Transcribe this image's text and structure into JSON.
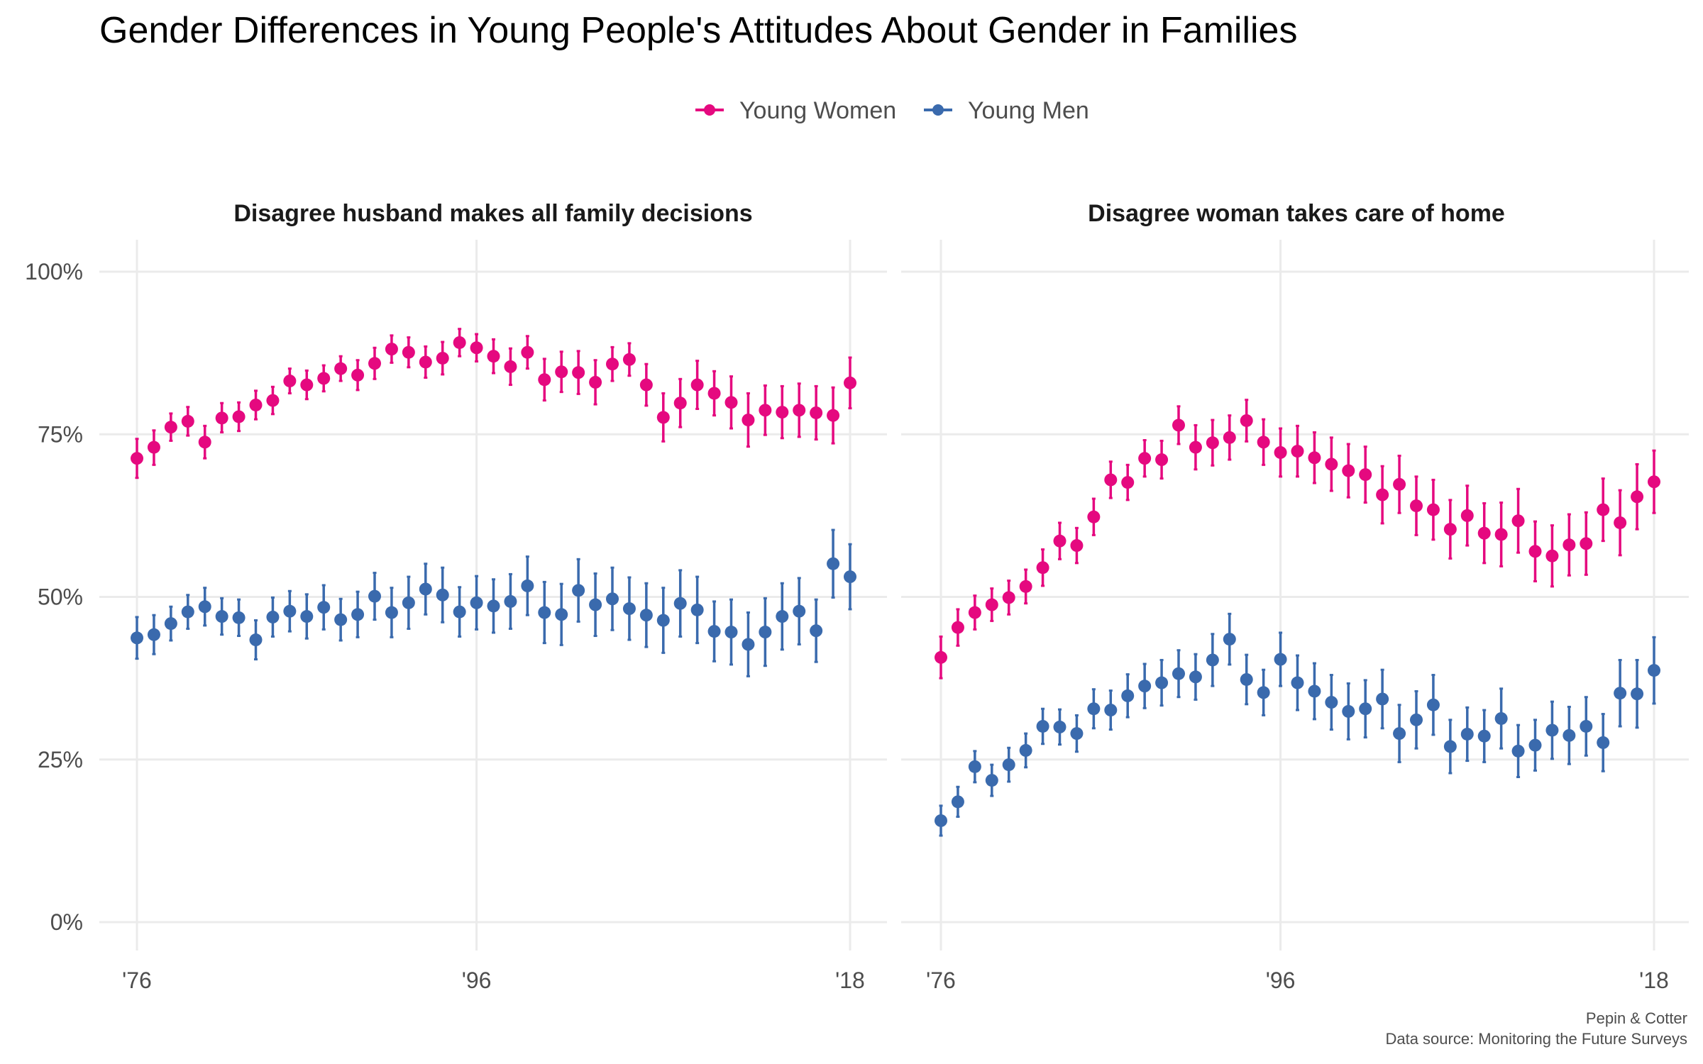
{
  "title": "Gender Differences in Young People's Attitudes About Gender in Families",
  "caption_line1": "Pepin & Cotter",
  "caption_line2": "Data source: Monitoring the Future Surveys",
  "colors": {
    "young_women": "#e5097f",
    "young_men": "#3a6aad"
  },
  "chart_data": [
    {
      "type": "scatter",
      "title": "Disagree husband makes all family decisions",
      "x_tick_labels": [
        "'76",
        "'96",
        "'18"
      ],
      "x_ticks": [
        1976,
        1996,
        2018
      ],
      "xlim": [
        1976,
        2018
      ],
      "y_tick_labels": [
        "0%",
        "25%",
        "50%",
        "75%",
        "100%"
      ],
      "y_ticks": [
        0,
        25,
        50,
        75,
        100
      ],
      "ylim": [
        0,
        100
      ],
      "legend": "top-center",
      "grid": true,
      "x": [
        1976,
        1977,
        1978,
        1979,
        1980,
        1981,
        1982,
        1983,
        1984,
        1985,
        1986,
        1987,
        1988,
        1989,
        1990,
        1991,
        1992,
        1993,
        1994,
        1995,
        1996,
        1997,
        1998,
        1999,
        2000,
        2001,
        2002,
        2003,
        2004,
        2005,
        2006,
        2007,
        2008,
        2009,
        2010,
        2011,
        2012,
        2013,
        2014,
        2015,
        2016,
        2017,
        2018
      ],
      "series": [
        {
          "name": "Young Women",
          "values": [
            71.3,
            73.0,
            76.1,
            77.0,
            73.8,
            77.5,
            77.7,
            79.5,
            80.2,
            83.2,
            82.6,
            83.6,
            85.1,
            84.1,
            85.9,
            88.1,
            87.6,
            86.1,
            86.7,
            89.1,
            88.3,
            87.0,
            85.4,
            87.6,
            83.4,
            84.6,
            84.5,
            83.0,
            85.8,
            86.5,
            82.6,
            77.6,
            79.8,
            82.6,
            81.3,
            79.9,
            77.2,
            78.7,
            78.4,
            78.7,
            78.3,
            77.9,
            82.9
          ],
          "lower": [
            68.3,
            70.3,
            74.0,
            74.8,
            71.3,
            75.3,
            75.5,
            77.3,
            78.1,
            81.3,
            80.4,
            81.6,
            83.2,
            81.8,
            83.5,
            86.0,
            85.3,
            83.7,
            84.2,
            87.0,
            86.2,
            84.4,
            82.6,
            85.1,
            80.2,
            81.5,
            81.2,
            79.6,
            83.2,
            84.0,
            79.4,
            73.9,
            76.1,
            78.9,
            77.9,
            75.9,
            73.1,
            74.9,
            74.4,
            74.6,
            74.2,
            73.6,
            79.0
          ],
          "upper": [
            74.3,
            75.6,
            78.2,
            79.2,
            76.3,
            79.8,
            79.9,
            81.7,
            82.3,
            85.1,
            84.8,
            85.6,
            87.0,
            86.4,
            88.3,
            90.2,
            89.9,
            88.5,
            89.2,
            91.2,
            90.4,
            89.6,
            88.2,
            90.1,
            86.6,
            87.7,
            87.8,
            86.4,
            88.4,
            89.0,
            85.8,
            81.3,
            83.5,
            86.3,
            84.7,
            83.9,
            81.3,
            82.5,
            82.4,
            82.8,
            82.4,
            82.2,
            86.8
          ]
        },
        {
          "name": "Young Men",
          "values": [
            43.7,
            44.2,
            45.9,
            47.7,
            48.5,
            47.0,
            46.8,
            43.4,
            46.9,
            47.8,
            47.0,
            48.4,
            46.5,
            47.3,
            50.1,
            47.6,
            49.1,
            51.2,
            50.3,
            47.7,
            49.1,
            48.6,
            49.3,
            51.7,
            47.6,
            47.3,
            51.0,
            48.8,
            49.7,
            48.2,
            47.2,
            46.4,
            49.0,
            48.0,
            44.7,
            44.6,
            42.7,
            44.6,
            47.0,
            47.8,
            44.8,
            55.1,
            53.1
          ],
          "lower": [
            40.5,
            41.2,
            43.3,
            45.1,
            45.6,
            44.2,
            44.0,
            40.4,
            43.9,
            44.7,
            43.6,
            45.0,
            43.3,
            43.8,
            46.5,
            43.8,
            45.1,
            47.3,
            46.1,
            43.9,
            45.0,
            44.5,
            45.1,
            47.2,
            42.9,
            42.6,
            46.2,
            44.0,
            44.9,
            43.4,
            42.3,
            41.4,
            43.9,
            42.9,
            40.1,
            39.6,
            37.8,
            39.4,
            41.9,
            42.7,
            40.0,
            49.9,
            48.1
          ],
          "upper": [
            46.9,
            47.2,
            48.5,
            50.3,
            51.4,
            49.8,
            49.6,
            46.4,
            49.9,
            50.9,
            50.4,
            51.8,
            49.7,
            50.8,
            53.7,
            51.4,
            53.1,
            55.1,
            54.5,
            51.5,
            53.2,
            52.7,
            53.5,
            56.2,
            52.3,
            52.0,
            55.8,
            53.6,
            54.5,
            53.0,
            52.1,
            51.4,
            54.1,
            53.1,
            49.3,
            49.6,
            47.6,
            49.8,
            52.1,
            52.9,
            49.6,
            60.3,
            58.1
          ]
        }
      ]
    },
    {
      "type": "scatter",
      "title": "Disagree woman takes care of home",
      "x_tick_labels": [
        "'76",
        "'96",
        "'18"
      ],
      "x_ticks": [
        1976,
        1996,
        2018
      ],
      "xlim": [
        1976,
        2018
      ],
      "y_tick_labels": [
        "0%",
        "25%",
        "50%",
        "75%",
        "100%"
      ],
      "y_ticks": [
        0,
        25,
        50,
        75,
        100
      ],
      "ylim": [
        0,
        100
      ],
      "legend": "top-center",
      "grid": true,
      "x": [
        1976,
        1977,
        1978,
        1979,
        1980,
        1981,
        1982,
        1983,
        1984,
        1985,
        1986,
        1987,
        1988,
        1989,
        1990,
        1991,
        1992,
        1993,
        1994,
        1995,
        1996,
        1997,
        1998,
        1999,
        2000,
        2001,
        2002,
        2003,
        2004,
        2005,
        2006,
        2007,
        2008,
        2009,
        2010,
        2011,
        2012,
        2013,
        2014,
        2015,
        2016,
        2017,
        2018
      ],
      "series": [
        {
          "name": "Young Women",
          "values": [
            40.7,
            45.3,
            47.6,
            48.8,
            49.9,
            51.6,
            54.5,
            58.6,
            57.9,
            62.3,
            68.0,
            67.6,
            71.3,
            71.1,
            76.4,
            73.0,
            73.7,
            74.5,
            77.1,
            73.8,
            72.2,
            72.4,
            71.4,
            70.4,
            69.4,
            68.8,
            65.7,
            67.3,
            64.0,
            63.4,
            60.4,
            62.5,
            59.8,
            59.6,
            61.7,
            57.0,
            56.3,
            58.0,
            58.2,
            63.4,
            61.4,
            65.4,
            67.7
          ],
          "lower": [
            37.5,
            42.5,
            45.0,
            46.3,
            47.3,
            49.0,
            51.7,
            55.8,
            55.2,
            59.5,
            65.2,
            64.9,
            68.5,
            68.2,
            73.5,
            69.6,
            70.2,
            71.1,
            73.9,
            70.3,
            68.5,
            68.5,
            67.5,
            66.3,
            65.3,
            64.5,
            61.3,
            62.9,
            59.5,
            58.8,
            55.9,
            57.9,
            55.2,
            54.7,
            56.8,
            52.4,
            51.6,
            53.3,
            53.4,
            58.6,
            56.4,
            60.4,
            62.9
          ],
          "upper": [
            43.9,
            48.1,
            50.2,
            51.3,
            52.5,
            54.2,
            57.3,
            61.4,
            60.6,
            65.1,
            70.8,
            70.3,
            74.1,
            74.0,
            79.3,
            76.4,
            77.2,
            77.9,
            80.3,
            77.3,
            75.9,
            76.3,
            75.3,
            74.5,
            73.5,
            73.1,
            70.1,
            71.7,
            68.5,
            68.0,
            64.9,
            67.1,
            64.4,
            64.5,
            66.6,
            61.6,
            61.0,
            62.7,
            63.0,
            68.2,
            66.4,
            70.4,
            72.5
          ]
        },
        {
          "name": "Young Men",
          "values": [
            15.6,
            18.5,
            23.9,
            21.8,
            24.2,
            26.4,
            30.1,
            30.0,
            29.0,
            32.8,
            32.6,
            34.8,
            36.3,
            36.8,
            38.2,
            37.7,
            40.3,
            43.5,
            37.3,
            35.3,
            40.4,
            36.8,
            35.5,
            33.8,
            32.4,
            32.8,
            34.3,
            29.0,
            31.1,
            33.4,
            27.0,
            28.9,
            28.6,
            31.3,
            26.3,
            27.2,
            29.5,
            28.7,
            30.1,
            27.6,
            35.2,
            35.1,
            38.7
          ],
          "lower": [
            13.3,
            16.2,
            21.5,
            19.4,
            21.6,
            23.8,
            27.4,
            27.3,
            26.2,
            29.8,
            29.6,
            31.5,
            32.9,
            33.3,
            34.6,
            34.2,
            36.3,
            39.6,
            33.5,
            31.8,
            36.3,
            32.6,
            31.2,
            29.6,
            28.1,
            28.4,
            29.8,
            24.6,
            26.7,
            28.8,
            22.9,
            24.8,
            24.6,
            26.7,
            22.3,
            23.3,
            25.1,
            24.3,
            25.6,
            23.2,
            30.1,
            29.9,
            33.6
          ],
          "upper": [
            17.9,
            20.8,
            26.3,
            24.2,
            26.8,
            29.0,
            32.8,
            32.7,
            31.8,
            35.8,
            35.6,
            38.1,
            39.7,
            40.3,
            41.8,
            41.2,
            44.3,
            47.4,
            41.1,
            38.8,
            44.5,
            41.0,
            39.8,
            38.0,
            36.7,
            37.2,
            38.8,
            33.4,
            35.5,
            38.0,
            31.1,
            33.0,
            32.6,
            35.9,
            30.3,
            31.1,
            33.9,
            33.1,
            34.6,
            32.0,
            40.3,
            40.3,
            43.8
          ]
        }
      ]
    }
  ]
}
